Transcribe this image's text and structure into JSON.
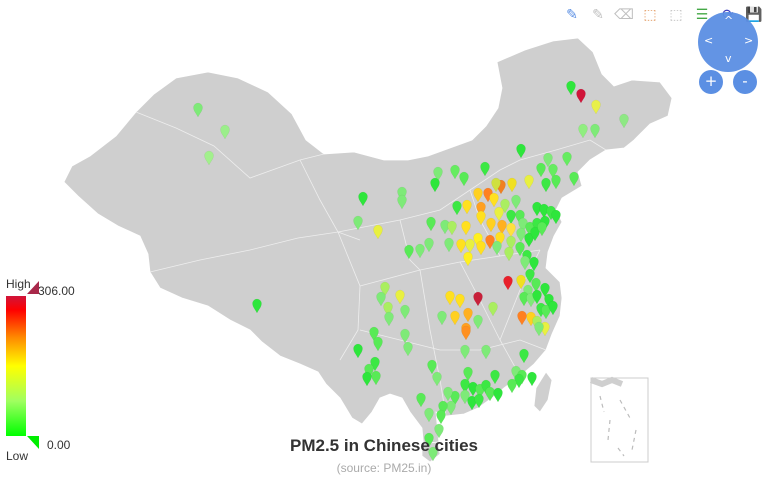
{
  "title": "PM2.5 in Chinese cities",
  "subtitle": "(source: PM25.in)",
  "legend": {
    "high_label": "High",
    "low_label": "Low",
    "max": "306.00",
    "min": "0.00"
  },
  "colors": {
    "land": "#cfcfcf",
    "border": "#ffffff",
    "roam": "#5b8fe3"
  },
  "toolbox": [
    {
      "name": "mark-icon",
      "glyph": "✎",
      "color": "#5b8fe3"
    },
    {
      "name": "mark-undo-icon",
      "glyph": "✎",
      "color": "#c0c0c0"
    },
    {
      "name": "mark-clear-icon",
      "glyph": "⌫",
      "color": "#c0c0c0"
    },
    {
      "name": "data-zoom-icon",
      "glyph": "⬚",
      "color": "#e29a62"
    },
    {
      "name": "data-zoom-reset-icon",
      "glyph": "⬚",
      "color": "#c0c0c0"
    },
    {
      "name": "data-view-icon",
      "glyph": "☰",
      "color": "#44a846"
    },
    {
      "name": "restore-icon",
      "glyph": "⟳",
      "color": "#3f3fbf"
    },
    {
      "name": "save-image-icon",
      "glyph": "💾",
      "color": "#e29a62"
    }
  ],
  "roam": {
    "left": "<",
    "right": ">",
    "up": "^",
    "down": "v",
    "zoom_in": "+",
    "zoom_out": "-"
  },
  "points": [
    [
      571,
      89,
      "#2ee63c"
    ],
    [
      581,
      97,
      "#d0153a"
    ],
    [
      596,
      108,
      "#e8f04a"
    ],
    [
      583,
      132,
      "#90ee80"
    ],
    [
      595,
      132,
      "#7eea78"
    ],
    [
      624,
      122,
      "#8ee884"
    ],
    [
      198,
      111,
      "#7eea78"
    ],
    [
      225,
      133,
      "#9bee8a"
    ],
    [
      209,
      159,
      "#a2f08c"
    ],
    [
      521,
      152,
      "#2ee63c"
    ],
    [
      485,
      170,
      "#3ce844"
    ],
    [
      455,
      173,
      "#66ec60"
    ],
    [
      438,
      175,
      "#7eea78"
    ],
    [
      435,
      186,
      "#2ee63c"
    ],
    [
      464,
      180,
      "#58ea56"
    ],
    [
      501,
      188,
      "#f08020"
    ],
    [
      512,
      186,
      "#f0e020"
    ],
    [
      488,
      196,
      "#ff8020"
    ],
    [
      496,
      186,
      "#cfe040"
    ],
    [
      529,
      183,
      "#e8f040"
    ],
    [
      546,
      186,
      "#3ce844"
    ],
    [
      541,
      171,
      "#58ea56"
    ],
    [
      553,
      172,
      "#66ec60"
    ],
    [
      567,
      160,
      "#66ec60"
    ],
    [
      548,
      161,
      "#7eea78"
    ],
    [
      574,
      180,
      "#58ea56"
    ],
    [
      556,
      183,
      "#58ea56"
    ],
    [
      478,
      196,
      "#ffd020"
    ],
    [
      467,
      208,
      "#ffe020"
    ],
    [
      457,
      209,
      "#3ce844"
    ],
    [
      402,
      195,
      "#7eea78"
    ],
    [
      402,
      203,
      "#7eea78"
    ],
    [
      363,
      200,
      "#2ee63c"
    ],
    [
      481,
      210,
      "#ffa020"
    ],
    [
      494,
      201,
      "#ffe020"
    ],
    [
      505,
      207,
      "#aaee60"
    ],
    [
      516,
      203,
      "#7eea78"
    ],
    [
      499,
      215,
      "#e8f040"
    ],
    [
      511,
      218,
      "#3ce844"
    ],
    [
      520,
      218,
      "#58ea56"
    ],
    [
      537,
      210,
      "#2ee63c"
    ],
    [
      544,
      212,
      "#2ee63c"
    ],
    [
      551,
      214,
      "#3ce844"
    ],
    [
      556,
      218,
      "#2ee63c"
    ],
    [
      481,
      219,
      "#ffe020"
    ],
    [
      491,
      226,
      "#ffd020"
    ],
    [
      502,
      228,
      "#ffb020"
    ],
    [
      511,
      231,
      "#ffe040"
    ],
    [
      523,
      226,
      "#7eea78"
    ],
    [
      530,
      230,
      "#58ea56"
    ],
    [
      537,
      226,
      "#3ce844"
    ],
    [
      545,
      224,
      "#2ee63c"
    ],
    [
      431,
      225,
      "#58ea56"
    ],
    [
      445,
      228,
      "#7eea78"
    ],
    [
      466,
      229,
      "#ffe020"
    ],
    [
      452,
      229,
      "#aaee60"
    ],
    [
      478,
      241,
      "#fff020"
    ],
    [
      490,
      243,
      "#ff8020"
    ],
    [
      500,
      240,
      "#ffe020"
    ],
    [
      511,
      244,
      "#aaee60"
    ],
    [
      521,
      236,
      "#7eea78"
    ],
    [
      529,
      241,
      "#2ee63c"
    ],
    [
      535,
      235,
      "#2ee63c"
    ],
    [
      542,
      230,
      "#58ea56"
    ],
    [
      358,
      224,
      "#7eea78"
    ],
    [
      378,
      233,
      "#e8f040"
    ],
    [
      429,
      246,
      "#7eea78"
    ],
    [
      449,
      246,
      "#7eea78"
    ],
    [
      461,
      247,
      "#ffe020"
    ],
    [
      470,
      247,
      "#e8f040"
    ],
    [
      481,
      249,
      "#ffe020"
    ],
    [
      497,
      249,
      "#7eea78"
    ],
    [
      509,
      255,
      "#aaee60"
    ],
    [
      520,
      250,
      "#58ea56"
    ],
    [
      527,
      258,
      "#3ce844"
    ],
    [
      409,
      253,
      "#58ea56"
    ],
    [
      420,
      252,
      "#7eea78"
    ],
    [
      468,
      260,
      "#fff020"
    ],
    [
      525,
      264,
      "#7eea78"
    ],
    [
      534,
      265,
      "#2ee63c"
    ],
    [
      508,
      284,
      "#e8202a"
    ],
    [
      521,
      283,
      "#f0e020"
    ],
    [
      530,
      277,
      "#3ce844"
    ],
    [
      536,
      286,
      "#58ea56"
    ],
    [
      545,
      291,
      "#2ee63c"
    ],
    [
      528,
      293,
      "#7eea78"
    ],
    [
      524,
      300,
      "#58ea56"
    ],
    [
      531,
      301,
      "#7eea78"
    ],
    [
      537,
      298,
      "#2ee63c"
    ],
    [
      549,
      302,
      "#2ee63c"
    ],
    [
      541,
      311,
      "#3ce844"
    ],
    [
      522,
      319,
      "#ff8020"
    ],
    [
      531,
      320,
      "#ffd020"
    ],
    [
      537,
      324,
      "#aaee60"
    ],
    [
      546,
      313,
      "#58ea56"
    ],
    [
      553,
      309,
      "#2ee63c"
    ],
    [
      545,
      330,
      "#e8f040"
    ],
    [
      539,
      330,
      "#7eea78"
    ],
    [
      478,
      300,
      "#c8203a"
    ],
    [
      450,
      299,
      "#ffe020"
    ],
    [
      460,
      302,
      "#ffe020"
    ],
    [
      493,
      310,
      "#aaee60"
    ],
    [
      468,
      316,
      "#ffb020"
    ],
    [
      455,
      319,
      "#ffd020"
    ],
    [
      466,
      331,
      "#ffa020"
    ],
    [
      478,
      323,
      "#7eea78"
    ],
    [
      442,
      319,
      "#7eea78"
    ],
    [
      466,
      334,
      "#ff9020"
    ],
    [
      385,
      290,
      "#aaee60"
    ],
    [
      381,
      300,
      "#7eea78"
    ],
    [
      400,
      298,
      "#e8f040"
    ],
    [
      388,
      310,
      "#aaee60"
    ],
    [
      389,
      320,
      "#7eea78"
    ],
    [
      405,
      313,
      "#7eea78"
    ],
    [
      405,
      337,
      "#7eea78"
    ],
    [
      408,
      350,
      "#7eea78"
    ],
    [
      374,
      335,
      "#58ea56"
    ],
    [
      378,
      345,
      "#58ea56"
    ],
    [
      257,
      307,
      "#2ee63c"
    ],
    [
      358,
      352,
      "#2ee63c"
    ],
    [
      375,
      365,
      "#3ce844"
    ],
    [
      369,
      372,
      "#58ea56"
    ],
    [
      367,
      380,
      "#2ee63c"
    ],
    [
      376,
      379,
      "#58ea56"
    ],
    [
      432,
      368,
      "#58ea56"
    ],
    [
      437,
      380,
      "#7eea78"
    ],
    [
      465,
      353,
      "#7eea78"
    ],
    [
      486,
      353,
      "#7eea78"
    ],
    [
      524,
      357,
      "#3ce844"
    ],
    [
      516,
      374,
      "#7eea78"
    ],
    [
      522,
      378,
      "#58ea56"
    ],
    [
      532,
      380,
      "#2ee63c"
    ],
    [
      519,
      382,
      "#3ce844"
    ],
    [
      512,
      387,
      "#58ea56"
    ],
    [
      495,
      378,
      "#3ce844"
    ],
    [
      468,
      375,
      "#58ea56"
    ],
    [
      465,
      387,
      "#3ce844"
    ],
    [
      473,
      390,
      "#2ee63c"
    ],
    [
      480,
      392,
      "#58ea56"
    ],
    [
      486,
      388,
      "#3ce844"
    ],
    [
      490,
      395,
      "#58ea56"
    ],
    [
      498,
      396,
      "#2ee63c"
    ],
    [
      465,
      398,
      "#7eea78"
    ],
    [
      455,
      399,
      "#58ea56"
    ],
    [
      448,
      395,
      "#7eea78"
    ],
    [
      451,
      409,
      "#7eea78"
    ],
    [
      472,
      404,
      "#2ee63c"
    ],
    [
      479,
      402,
      "#3ce844"
    ],
    [
      443,
      409,
      "#58ea56"
    ],
    [
      421,
      401,
      "#58ea56"
    ],
    [
      429,
      416,
      "#7eea78"
    ],
    [
      441,
      418,
      "#58ea56"
    ],
    [
      439,
      432,
      "#7eea78"
    ],
    [
      429,
      441,
      "#58ea56"
    ],
    [
      433,
      455,
      "#7eea78"
    ]
  ]
}
